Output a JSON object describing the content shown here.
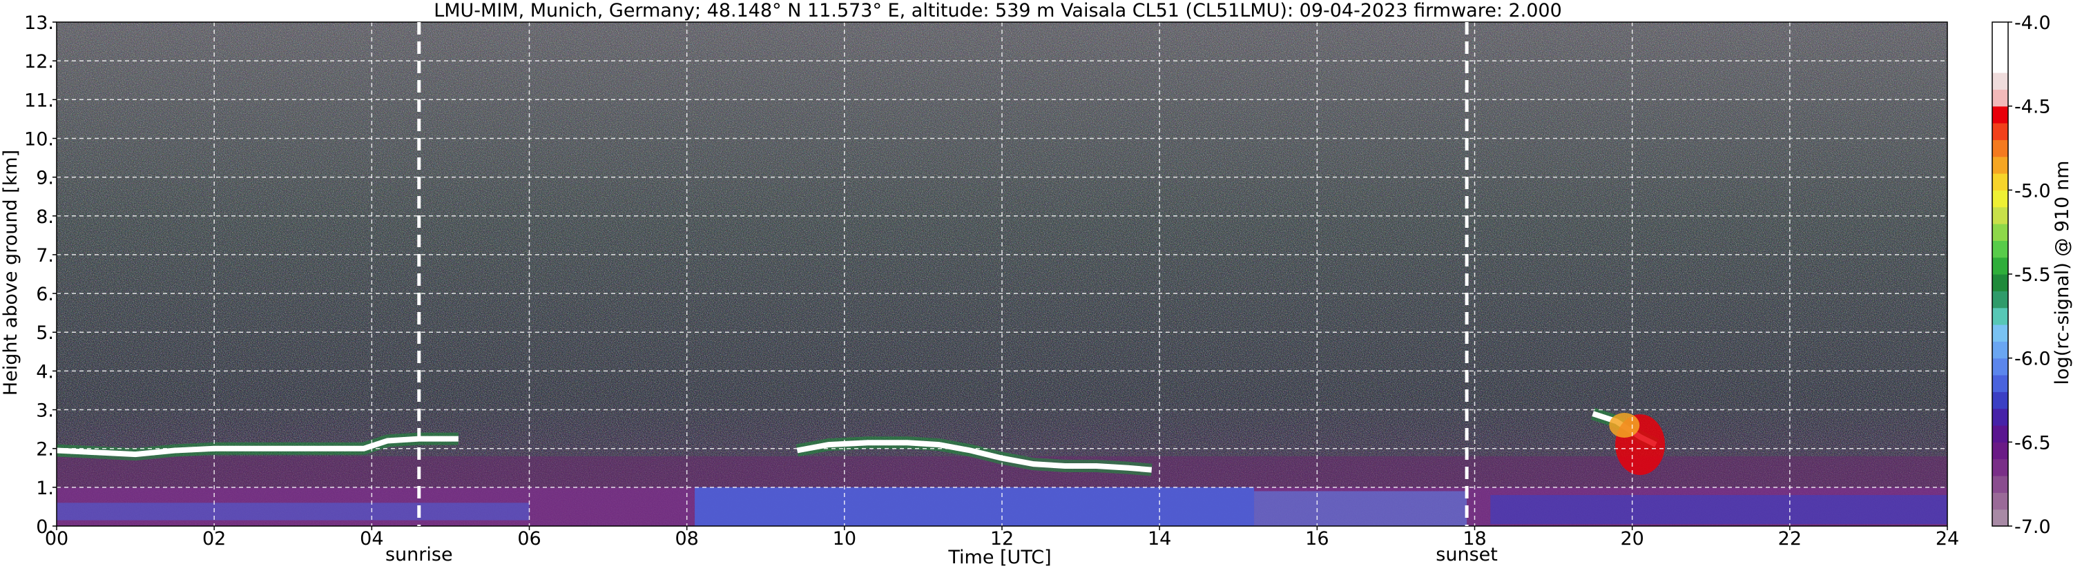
{
  "chart_data": {
    "type": "heatmap",
    "title": "LMU-MIM, Munich, Germany; 48.148° N 11.573° E, altitude: 539 m    Vaisala CL51 (CL51LMU): 09-04-2023    firmware: 2.000",
    "xlabel": "Time [UTC]",
    "ylabel": "Height above ground [km]",
    "xlim": [
      0,
      24
    ],
    "ylim": [
      0,
      13
    ],
    "x_ticks": [
      0,
      2,
      4,
      6,
      8,
      10,
      12,
      14,
      16,
      18,
      20,
      22,
      24
    ],
    "x_tick_labels": [
      "00",
      "02",
      "04",
      "06",
      "08",
      "10",
      "12",
      "14",
      "16",
      "18",
      "20",
      "22",
      "24"
    ],
    "y_ticks": [
      0,
      1,
      2,
      3,
      4,
      5,
      6,
      7,
      8,
      9,
      10,
      11,
      12,
      13
    ],
    "y_tick_labels": [
      "0.",
      "1.",
      "2.",
      "3.",
      "4.",
      "5.",
      "6.",
      "7.",
      "8.",
      "9.",
      "10.",
      "11.",
      "12.",
      "13."
    ],
    "grid": true,
    "annotations": [
      {
        "label": "sunrise",
        "x": 4.6
      },
      {
        "label": "sunset",
        "x": 17.9
      }
    ],
    "colorbar": {
      "label": "log(rc-signal) @ 910 nm",
      "range": [
        -7.0,
        -4.0
      ],
      "ticks": [
        -4.0,
        -4.5,
        -5.0,
        -5.5,
        -6.0,
        -6.5,
        -7.0
      ],
      "tick_labels": [
        "-4.0",
        "-4.5",
        "-5.0",
        "-5.5",
        "-6.0",
        "-6.5",
        "-7.0"
      ],
      "colors": [
        "#a88aa5",
        "#9a6a98",
        "#8a4d8f",
        "#7a2f88",
        "#6a1a86",
        "#5a1590",
        "#4622a8",
        "#3b3fc4",
        "#4a63dd",
        "#5b86ec",
        "#6aa6f2",
        "#79c2f2",
        "#57c7b6",
        "#2f9b6a",
        "#1f8a3a",
        "#2fae3a",
        "#58cc4a",
        "#8ed84a",
        "#c8e04a",
        "#eef034",
        "#f7d42a",
        "#f5a623",
        "#f47a1f",
        "#f2401a",
        "#e8000a",
        "#f2b9b9",
        "#efdcdc",
        "#ffffff",
        "#ffffff",
        "#ffffff"
      ]
    },
    "layers": [
      {
        "kind": "cloud_top",
        "points": [
          [
            0.0,
            1.95
          ],
          [
            0.5,
            1.9
          ],
          [
            1.0,
            1.85
          ],
          [
            1.5,
            1.95
          ],
          [
            2.0,
            2.0
          ],
          [
            2.5,
            2.0
          ],
          [
            3.0,
            2.0
          ],
          [
            3.5,
            2.0
          ],
          [
            3.9,
            2.0
          ],
          [
            4.2,
            2.2
          ],
          [
            4.6,
            2.25
          ],
          [
            5.1,
            2.25
          ]
        ]
      },
      {
        "kind": "cloud_top",
        "points": [
          [
            9.4,
            1.95
          ],
          [
            9.8,
            2.1
          ],
          [
            10.3,
            2.15
          ],
          [
            10.8,
            2.15
          ],
          [
            11.2,
            2.1
          ],
          [
            11.6,
            1.95
          ],
          [
            12.0,
            1.75
          ],
          [
            12.4,
            1.6
          ],
          [
            12.8,
            1.55
          ],
          [
            13.2,
            1.55
          ],
          [
            13.6,
            1.5
          ],
          [
            13.9,
            1.45
          ]
        ]
      },
      {
        "kind": "cloud_top",
        "points": [
          [
            19.5,
            2.9
          ],
          [
            19.8,
            2.7
          ],
          [
            20.1,
            2.3
          ],
          [
            20.3,
            2.1
          ]
        ]
      }
    ]
  }
}
